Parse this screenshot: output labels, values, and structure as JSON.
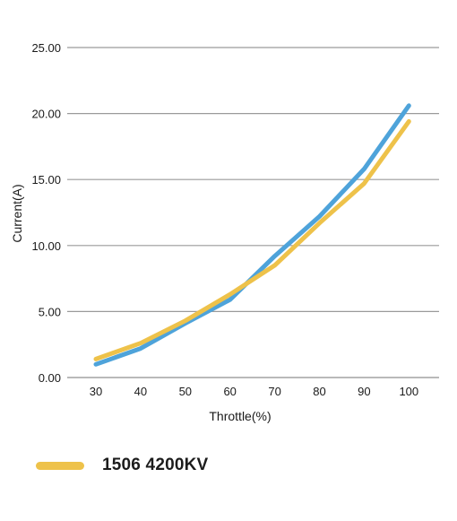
{
  "chart_data": {
    "type": "line",
    "title": "",
    "xlabel": "Throttle(%)",
    "ylabel": "Current(A)",
    "categories": [
      "30",
      "40",
      "50",
      "60",
      "70",
      "80",
      "90",
      "100"
    ],
    "ytick_labels": [
      "0.00",
      "5.00",
      "10.00",
      "15.00",
      "20.00",
      "25.00"
    ],
    "ylim": [
      0,
      25
    ],
    "grid": true,
    "legend_position": "bottom-left",
    "series": [
      {
        "name": "",
        "color": "#4EA3DA",
        "values": [
          1.0,
          2.2,
          4.1,
          5.9,
          9.2,
          12.2,
          15.8,
          20.6
        ]
      },
      {
        "name": "1506 4200KV",
        "color": "#EEC24A",
        "values": [
          1.4,
          2.6,
          4.3,
          6.3,
          8.5,
          11.7,
          14.7,
          19.4
        ]
      }
    ]
  }
}
